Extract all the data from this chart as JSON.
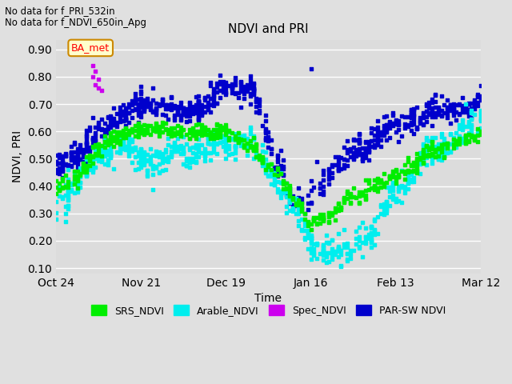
{
  "title": "NDVI and PRI",
  "xlabel": "Time",
  "ylabel": "NDVI, PRI",
  "annotation_line1": "No data for f_PRI_532in",
  "annotation_line2": "No data for f_NDVI_650in_Apg",
  "box_label": "BA_met",
  "ylim": [
    0.08,
    0.935
  ],
  "yticks": [
    0.1,
    0.2,
    0.3,
    0.4,
    0.5,
    0.6,
    0.7,
    0.8,
    0.9
  ],
  "xtick_labels": [
    "Oct 24",
    "Nov 21",
    "Dec 19",
    "Jan 16",
    "Feb 13",
    "Mar 12"
  ],
  "colors": {
    "SRS_NDVI": "#00ee00",
    "Arable_NDVI": "#00eeee",
    "Spec_NDVI": "#cc00ee",
    "PAR_SW_NDVI": "#0000cc"
  },
  "legend_labels": [
    "SRS_NDVI",
    "Arable_NDVI",
    "Spec_NDVI",
    "PAR-SW NDVI"
  ],
  "background_color": "#e0e0e0",
  "plot_bg_color": "#dcdcdc"
}
